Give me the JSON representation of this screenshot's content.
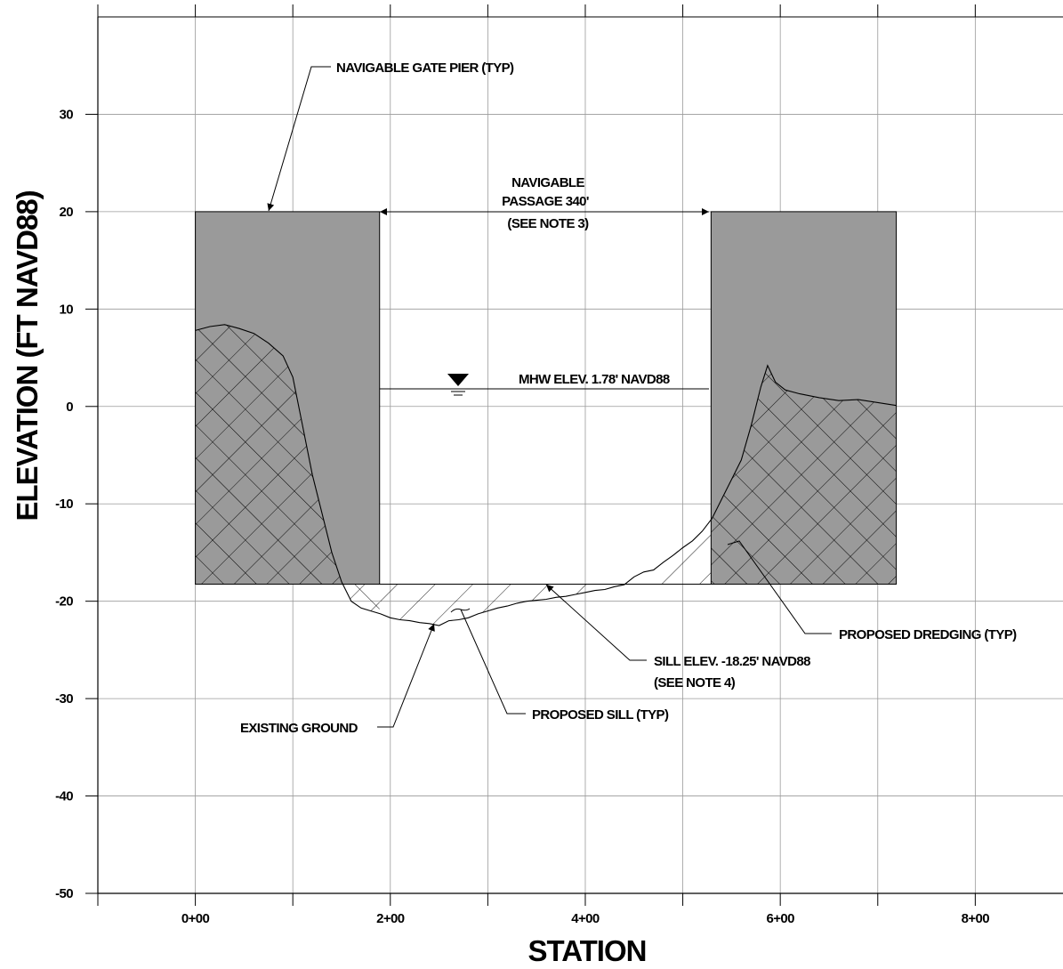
{
  "chart_data": {
    "type": "cross-section",
    "xlabel": "STATION",
    "ylabel": "ELEVATION (FT NAVD88)",
    "xlim": [
      -100,
      890
    ],
    "ylim": [
      -50,
      40
    ],
    "x_ticks": [
      {
        "value": 0,
        "label": "0+00"
      },
      {
        "value": 200,
        "label": "2+00"
      },
      {
        "value": 400,
        "label": "4+00"
      },
      {
        "value": 600,
        "label": "6+00"
      },
      {
        "value": 800,
        "label": "8+00"
      }
    ],
    "y_ticks": [
      {
        "value": 30,
        "label": "30"
      },
      {
        "value": 20,
        "label": "20"
      },
      {
        "value": 10,
        "label": "10"
      },
      {
        "value": 0,
        "label": "0"
      },
      {
        "value": -10,
        "label": "-10"
      },
      {
        "value": -20,
        "label": "-20"
      },
      {
        "value": -30,
        "label": "-30"
      },
      {
        "value": -40,
        "label": "-40"
      },
      {
        "value": -50,
        "label": "-50"
      }
    ],
    "grid": true,
    "piers": [
      {
        "x_start": 0,
        "x_end": 189,
        "top": 20,
        "bottom": -18.25
      },
      {
        "x_start": 529,
        "x_end": 719,
        "top": 20,
        "bottom": -18.25
      }
    ],
    "sill_elevation": -18.25,
    "mhw_elevation": 1.78,
    "navigable_passage_ft": 340,
    "existing_ground": [
      [
        0,
        7.8
      ],
      [
        15,
        8.2
      ],
      [
        30,
        8.4
      ],
      [
        45,
        8.0
      ],
      [
        60,
        7.5
      ],
      [
        75,
        6.5
      ],
      [
        90,
        5.2
      ],
      [
        100,
        3.0
      ],
      [
        110,
        -2.0
      ],
      [
        120,
        -7.0
      ],
      [
        130,
        -11.0
      ],
      [
        140,
        -15.0
      ],
      [
        150,
        -18.0
      ],
      [
        160,
        -20.0
      ],
      [
        170,
        -20.7
      ],
      [
        180,
        -21.0
      ],
      [
        190,
        -21.3
      ],
      [
        200,
        -21.7
      ],
      [
        210,
        -21.9
      ],
      [
        220,
        -22.0
      ],
      [
        230,
        -22.2
      ],
      [
        240,
        -22.3
      ],
      [
        250,
        -22.5
      ],
      [
        260,
        -22.0
      ],
      [
        270,
        -21.9
      ],
      [
        280,
        -21.7
      ],
      [
        290,
        -21.3
      ],
      [
        300,
        -21.0
      ],
      [
        310,
        -20.7
      ],
      [
        320,
        -20.5
      ],
      [
        330,
        -20.2
      ],
      [
        340,
        -20.0
      ],
      [
        350,
        -19.9
      ],
      [
        360,
        -19.8
      ],
      [
        370,
        -19.6
      ],
      [
        380,
        -19.5
      ],
      [
        390,
        -19.3
      ],
      [
        400,
        -19.1
      ],
      [
        410,
        -18.9
      ],
      [
        420,
        -18.8
      ],
      [
        430,
        -18.5
      ],
      [
        440,
        -18.3
      ],
      [
        450,
        -17.5
      ],
      [
        460,
        -17.0
      ],
      [
        470,
        -16.8
      ],
      [
        480,
        -16.0
      ],
      [
        490,
        -15.3
      ],
      [
        500,
        -14.5
      ],
      [
        510,
        -13.8
      ],
      [
        520,
        -12.8
      ],
      [
        530,
        -11.5
      ],
      [
        540,
        -9.5
      ],
      [
        550,
        -7.5
      ],
      [
        560,
        -5.5
      ],
      [
        570,
        -2.0
      ],
      [
        580,
        2.0
      ],
      [
        587,
        4.2
      ],
      [
        595,
        2.5
      ],
      [
        605,
        1.7
      ],
      [
        620,
        1.3
      ],
      [
        640,
        0.9
      ],
      [
        660,
        0.6
      ],
      [
        680,
        0.7
      ],
      [
        700,
        0.4
      ],
      [
        719,
        0.1
      ]
    ]
  },
  "annotations": {
    "gate_pier": "NAVIGABLE GATE PIER (TYP)",
    "passage_line1": "NAVIGABLE",
    "passage_line2": "PASSAGE 340'",
    "passage_line3": "(SEE NOTE 3)",
    "mhw": "MHW ELEV. 1.78' NAVD88",
    "dredging": "PROPOSED DREDGING (TYP)",
    "sill_elev_line1": "SILL ELEV. -18.25' NAVD88",
    "sill_elev_line2": "(SEE NOTE 4)",
    "existing_ground": "EXISTING GROUND",
    "proposed_sill": "PROPOSED SILL (TYP)"
  },
  "colors": {
    "pier_fill": "#9a9a9a",
    "grid": "#9a9a9a",
    "ink": "#000000"
  }
}
